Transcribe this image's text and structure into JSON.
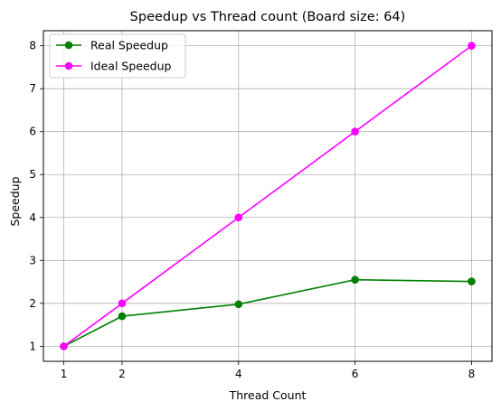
{
  "chart_data": {
    "type": "line",
    "title": "Speedup vs Thread count (Board size: 64)",
    "xlabel": "Thread Count",
    "ylabel": "Speedup",
    "x": [
      1,
      2,
      4,
      6,
      8
    ],
    "xticks": [
      1,
      2,
      4,
      6,
      8
    ],
    "yticks": [
      1,
      2,
      3,
      4,
      5,
      6,
      7,
      8
    ],
    "xlim": [
      0.65,
      8.35
    ],
    "ylim": [
      0.65,
      8.35
    ],
    "grid": true,
    "legend_position": "top-left",
    "series": [
      {
        "name": "Real Speedup",
        "color": "#008000",
        "marker": "circle",
        "values": [
          1.0,
          1.7,
          1.98,
          2.55,
          2.51
        ]
      },
      {
        "name": "Ideal Speedup",
        "color": "#ff00ff",
        "marker": "circle",
        "values": [
          1,
          2,
          4,
          6,
          8
        ]
      }
    ]
  }
}
